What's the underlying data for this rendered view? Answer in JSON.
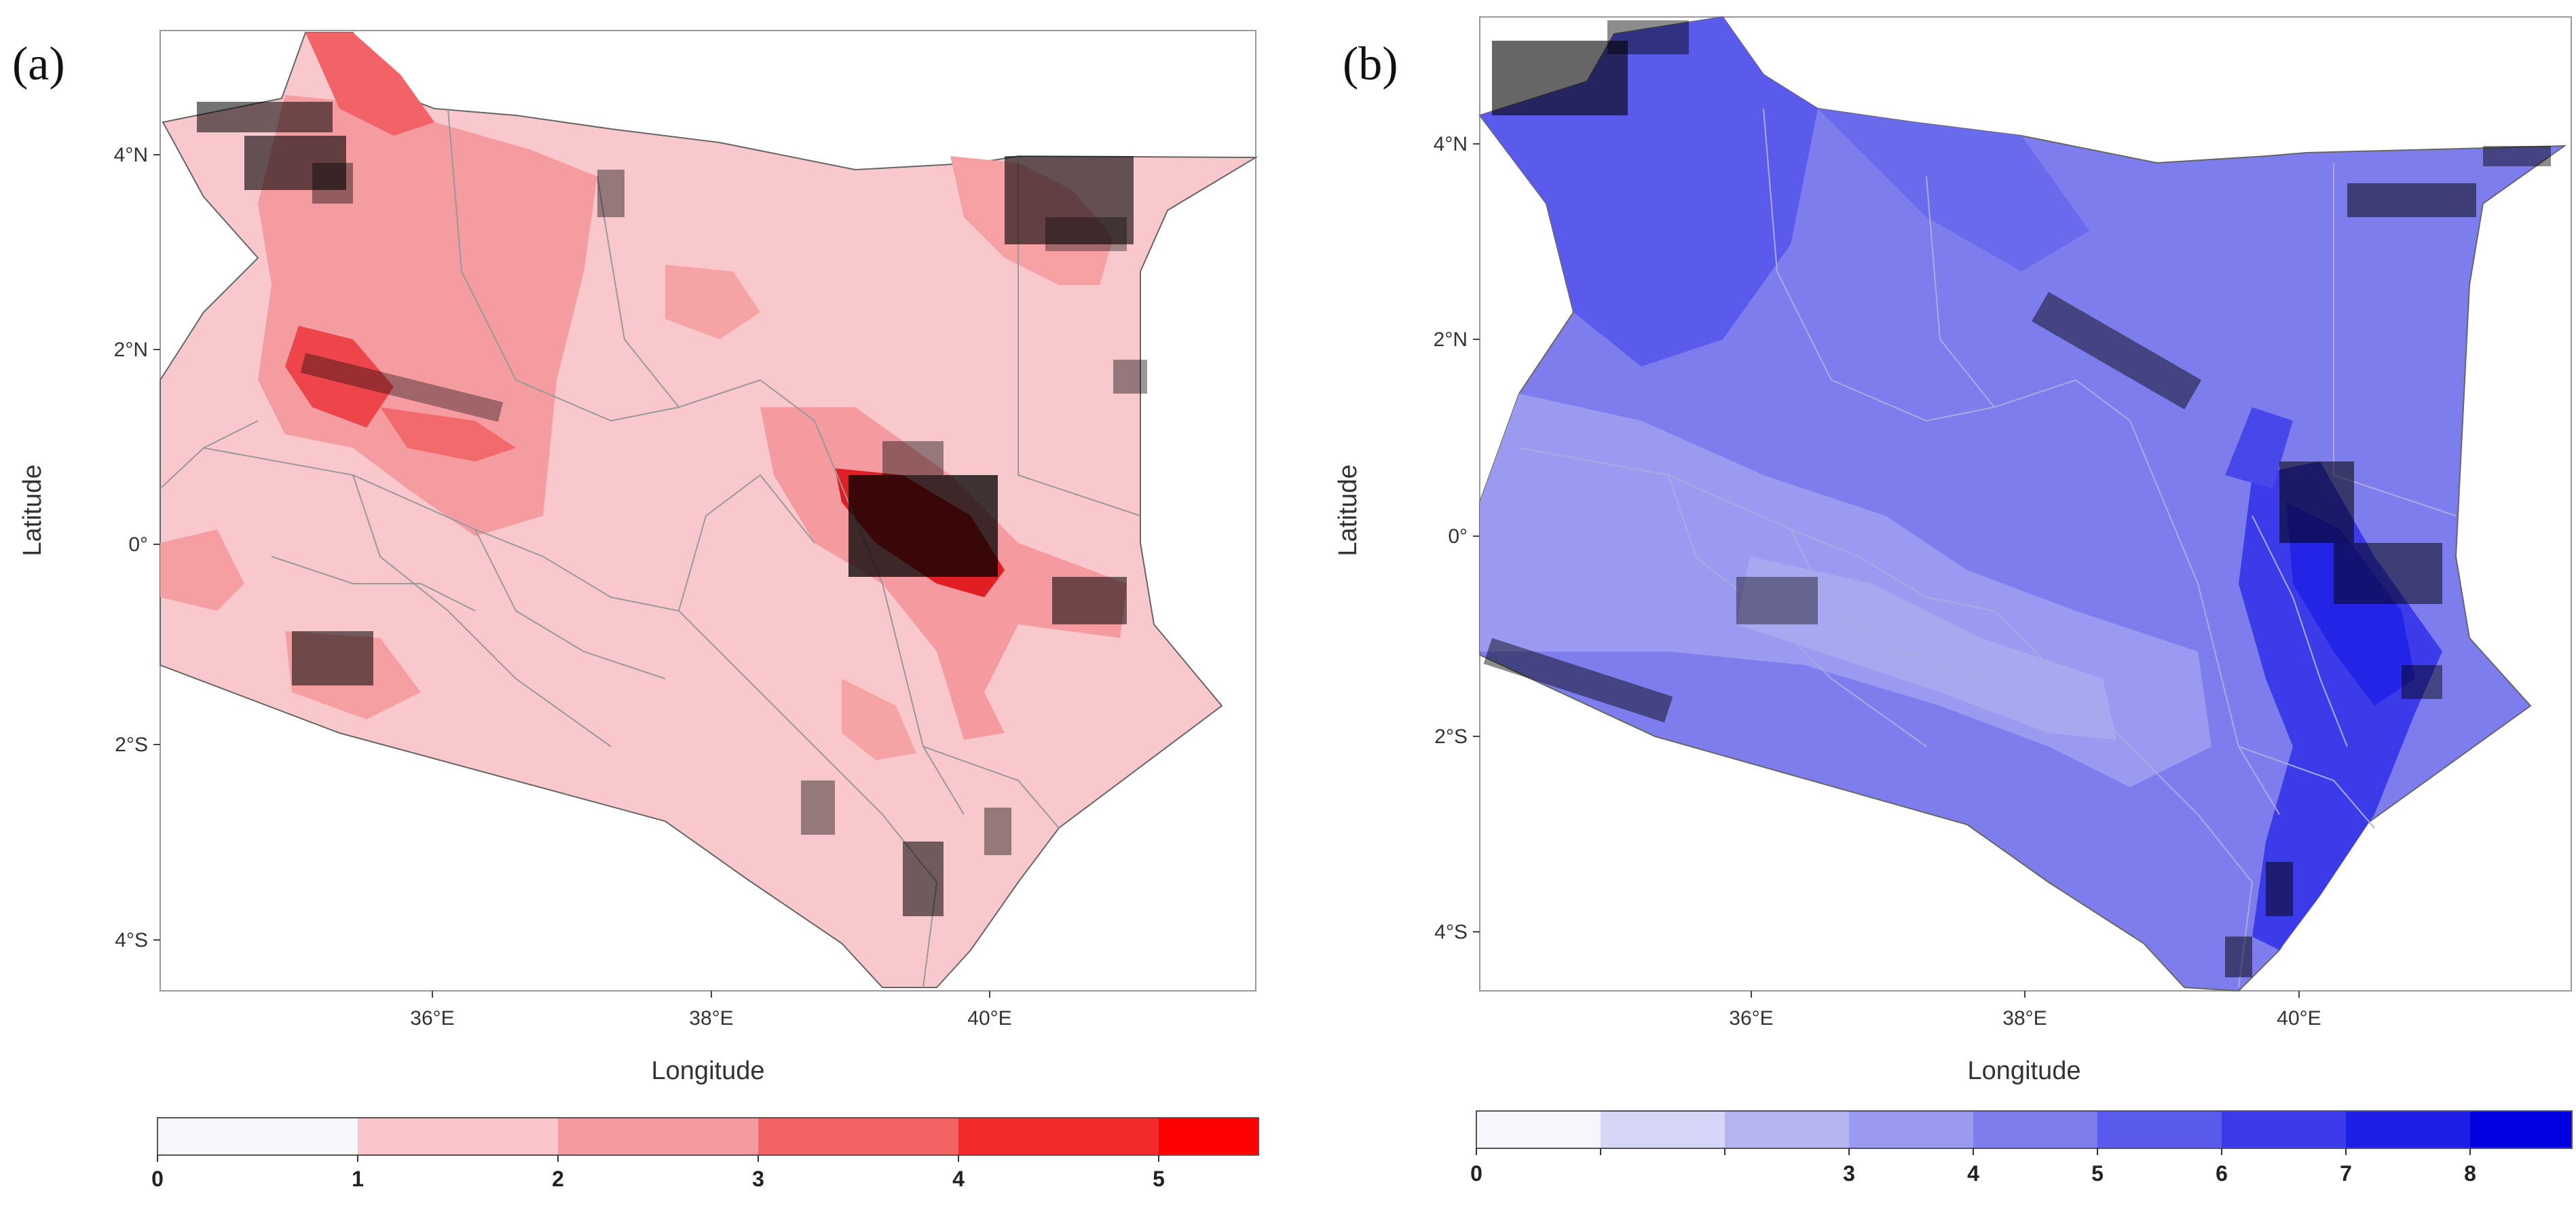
{
  "panels": [
    {
      "id": "a",
      "label": "(a)",
      "x_axis_label": "Longitude",
      "y_axis_label": "Latitude",
      "lat_ticks": [
        "4°N",
        "2°N",
        "0°",
        "2°S",
        "4°S"
      ],
      "lon_ticks": [
        "36°E",
        "38°E",
        "40°E"
      ],
      "colorbar": {
        "colors": [
          "#f7f7fb",
          "#f9c6cb",
          "#f59a9e",
          "#f36364",
          "#f22a2a",
          "#ff0000"
        ],
        "tick_labels": [
          "0",
          "1",
          "2",
          "3",
          "4",
          "5"
        ]
      }
    },
    {
      "id": "b",
      "label": "(b)",
      "x_axis_label": "Longitude",
      "y_axis_label": "Latitude",
      "lat_ticks": [
        "4°N",
        "2°N",
        "0°",
        "2°S",
        "4°S"
      ],
      "lon_ticks": [
        "36°E",
        "38°E",
        "40°E"
      ],
      "colorbar": {
        "colors": [
          "#f6f6fc",
          "#d6d6f6",
          "#b5b5f1",
          "#9a9af0",
          "#7d7dee",
          "#5a5aec",
          "#3b3be9",
          "#1e1ee6",
          "#0000e0"
        ],
        "tick_labels": [
          "0",
          "",
          "",
          "3",
          "4",
          "5",
          "6",
          "7",
          "8"
        ]
      }
    }
  ]
}
